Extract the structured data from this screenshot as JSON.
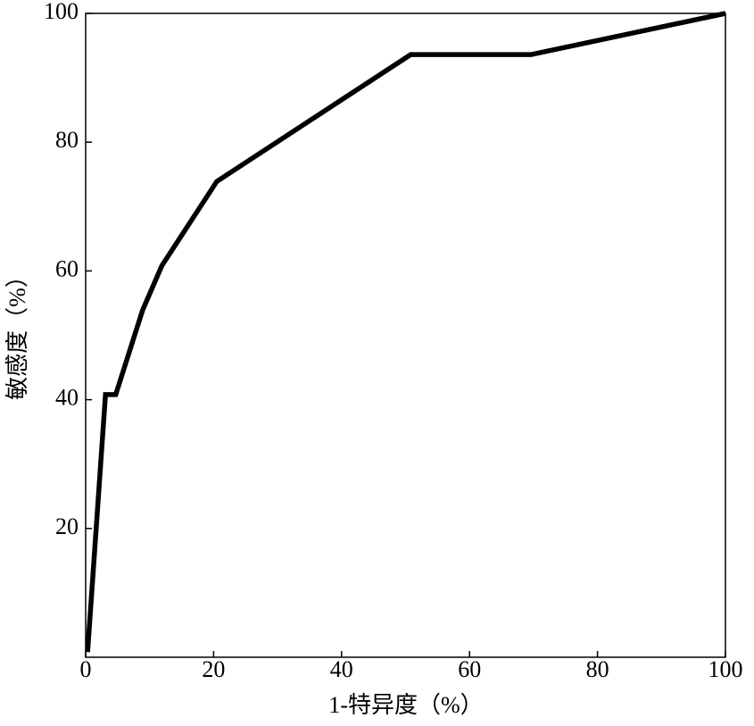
{
  "chart_data": {
    "type": "line",
    "x_label": "1-特异度（%）",
    "y_label": "敏感度（%）",
    "x": [
      0.3,
      3.1,
      4.7,
      8.9,
      11.9,
      20.5,
      50.8,
      69.6,
      100
    ],
    "series": [
      {
        "color": "#000000",
        "values": [
          0.8,
          40.8,
          40.8,
          53.9,
          60.8,
          73.9,
          93.6,
          93.6,
          100
        ]
      }
    ],
    "xlim": [
      0,
      100
    ],
    "xticks": [
      0,
      20,
      40,
      60,
      80,
      100
    ],
    "ylim": [
      0,
      100
    ],
    "yticks": [
      20,
      40,
      60,
      80,
      100
    ],
    "grid": false
  }
}
